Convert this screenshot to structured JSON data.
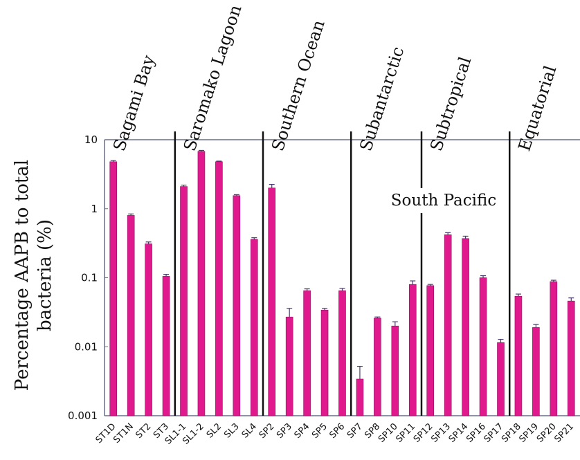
{
  "chart_data": {
    "type": "bar",
    "title": "",
    "ylabel_line1": "Percentage AAPB to total",
    "ylabel_line2": "bacteria (%)",
    "xlabel": "",
    "yscale": "log",
    "ylim": [
      0.001,
      10
    ],
    "yticks": [
      "10",
      "1",
      "0.1",
      "0.01",
      "0.001"
    ],
    "colors": {
      "bar": "#e01a8c",
      "bar_edge": "#8a1060",
      "error": "#4a3a6a",
      "divider": "#111111",
      "frame": "#6a6e86"
    },
    "categories": [
      "ST1D",
      "ST1N",
      "ST2",
      "ST3",
      "SL1-1",
      "SL1-2",
      "SL2",
      "SL3",
      "SL4",
      "SP2",
      "SP3",
      "SP4",
      "SP5",
      "SP6",
      "SP7",
      "SP8",
      "SP10",
      "SP11",
      "SP12",
      "SP13",
      "SP14",
      "SP16",
      "SP17",
      "SP18",
      "SP19",
      "SP20",
      "SP21"
    ],
    "values": [
      4.8,
      0.8,
      0.31,
      0.105,
      2.1,
      6.8,
      4.8,
      1.55,
      0.36,
      2.0,
      0.027,
      0.065,
      0.034,
      0.065,
      0.0034,
      0.026,
      0.02,
      0.08,
      0.077,
      0.42,
      0.37,
      0.1,
      0.0115,
      0.054,
      0.019,
      0.088,
      0.046
    ],
    "errors_upper": [
      5.0,
      0.84,
      0.33,
      0.112,
      2.2,
      7.0,
      4.9,
      1.6,
      0.38,
      2.25,
      0.036,
      0.069,
      0.036,
      0.07,
      0.0052,
      0.027,
      0.023,
      0.09,
      0.08,
      0.45,
      0.4,
      0.107,
      0.0128,
      0.058,
      0.021,
      0.092,
      0.051
    ],
    "regions": [
      {
        "label": "Sagami Bay",
        "start": 0,
        "end": 3
      },
      {
        "label": "Saromako Lagoon",
        "start": 4,
        "end": 8
      },
      {
        "label": "Southern Ocean",
        "start": 9,
        "end": 13
      },
      {
        "label": "Subantarctic",
        "start": 14,
        "end": 17
      },
      {
        "label": "Subtropical",
        "start": 18,
        "end": 22
      },
      {
        "label": "Equatorial",
        "start": 23,
        "end": 26
      }
    ],
    "group_label": "South Pacific",
    "grid": false
  }
}
